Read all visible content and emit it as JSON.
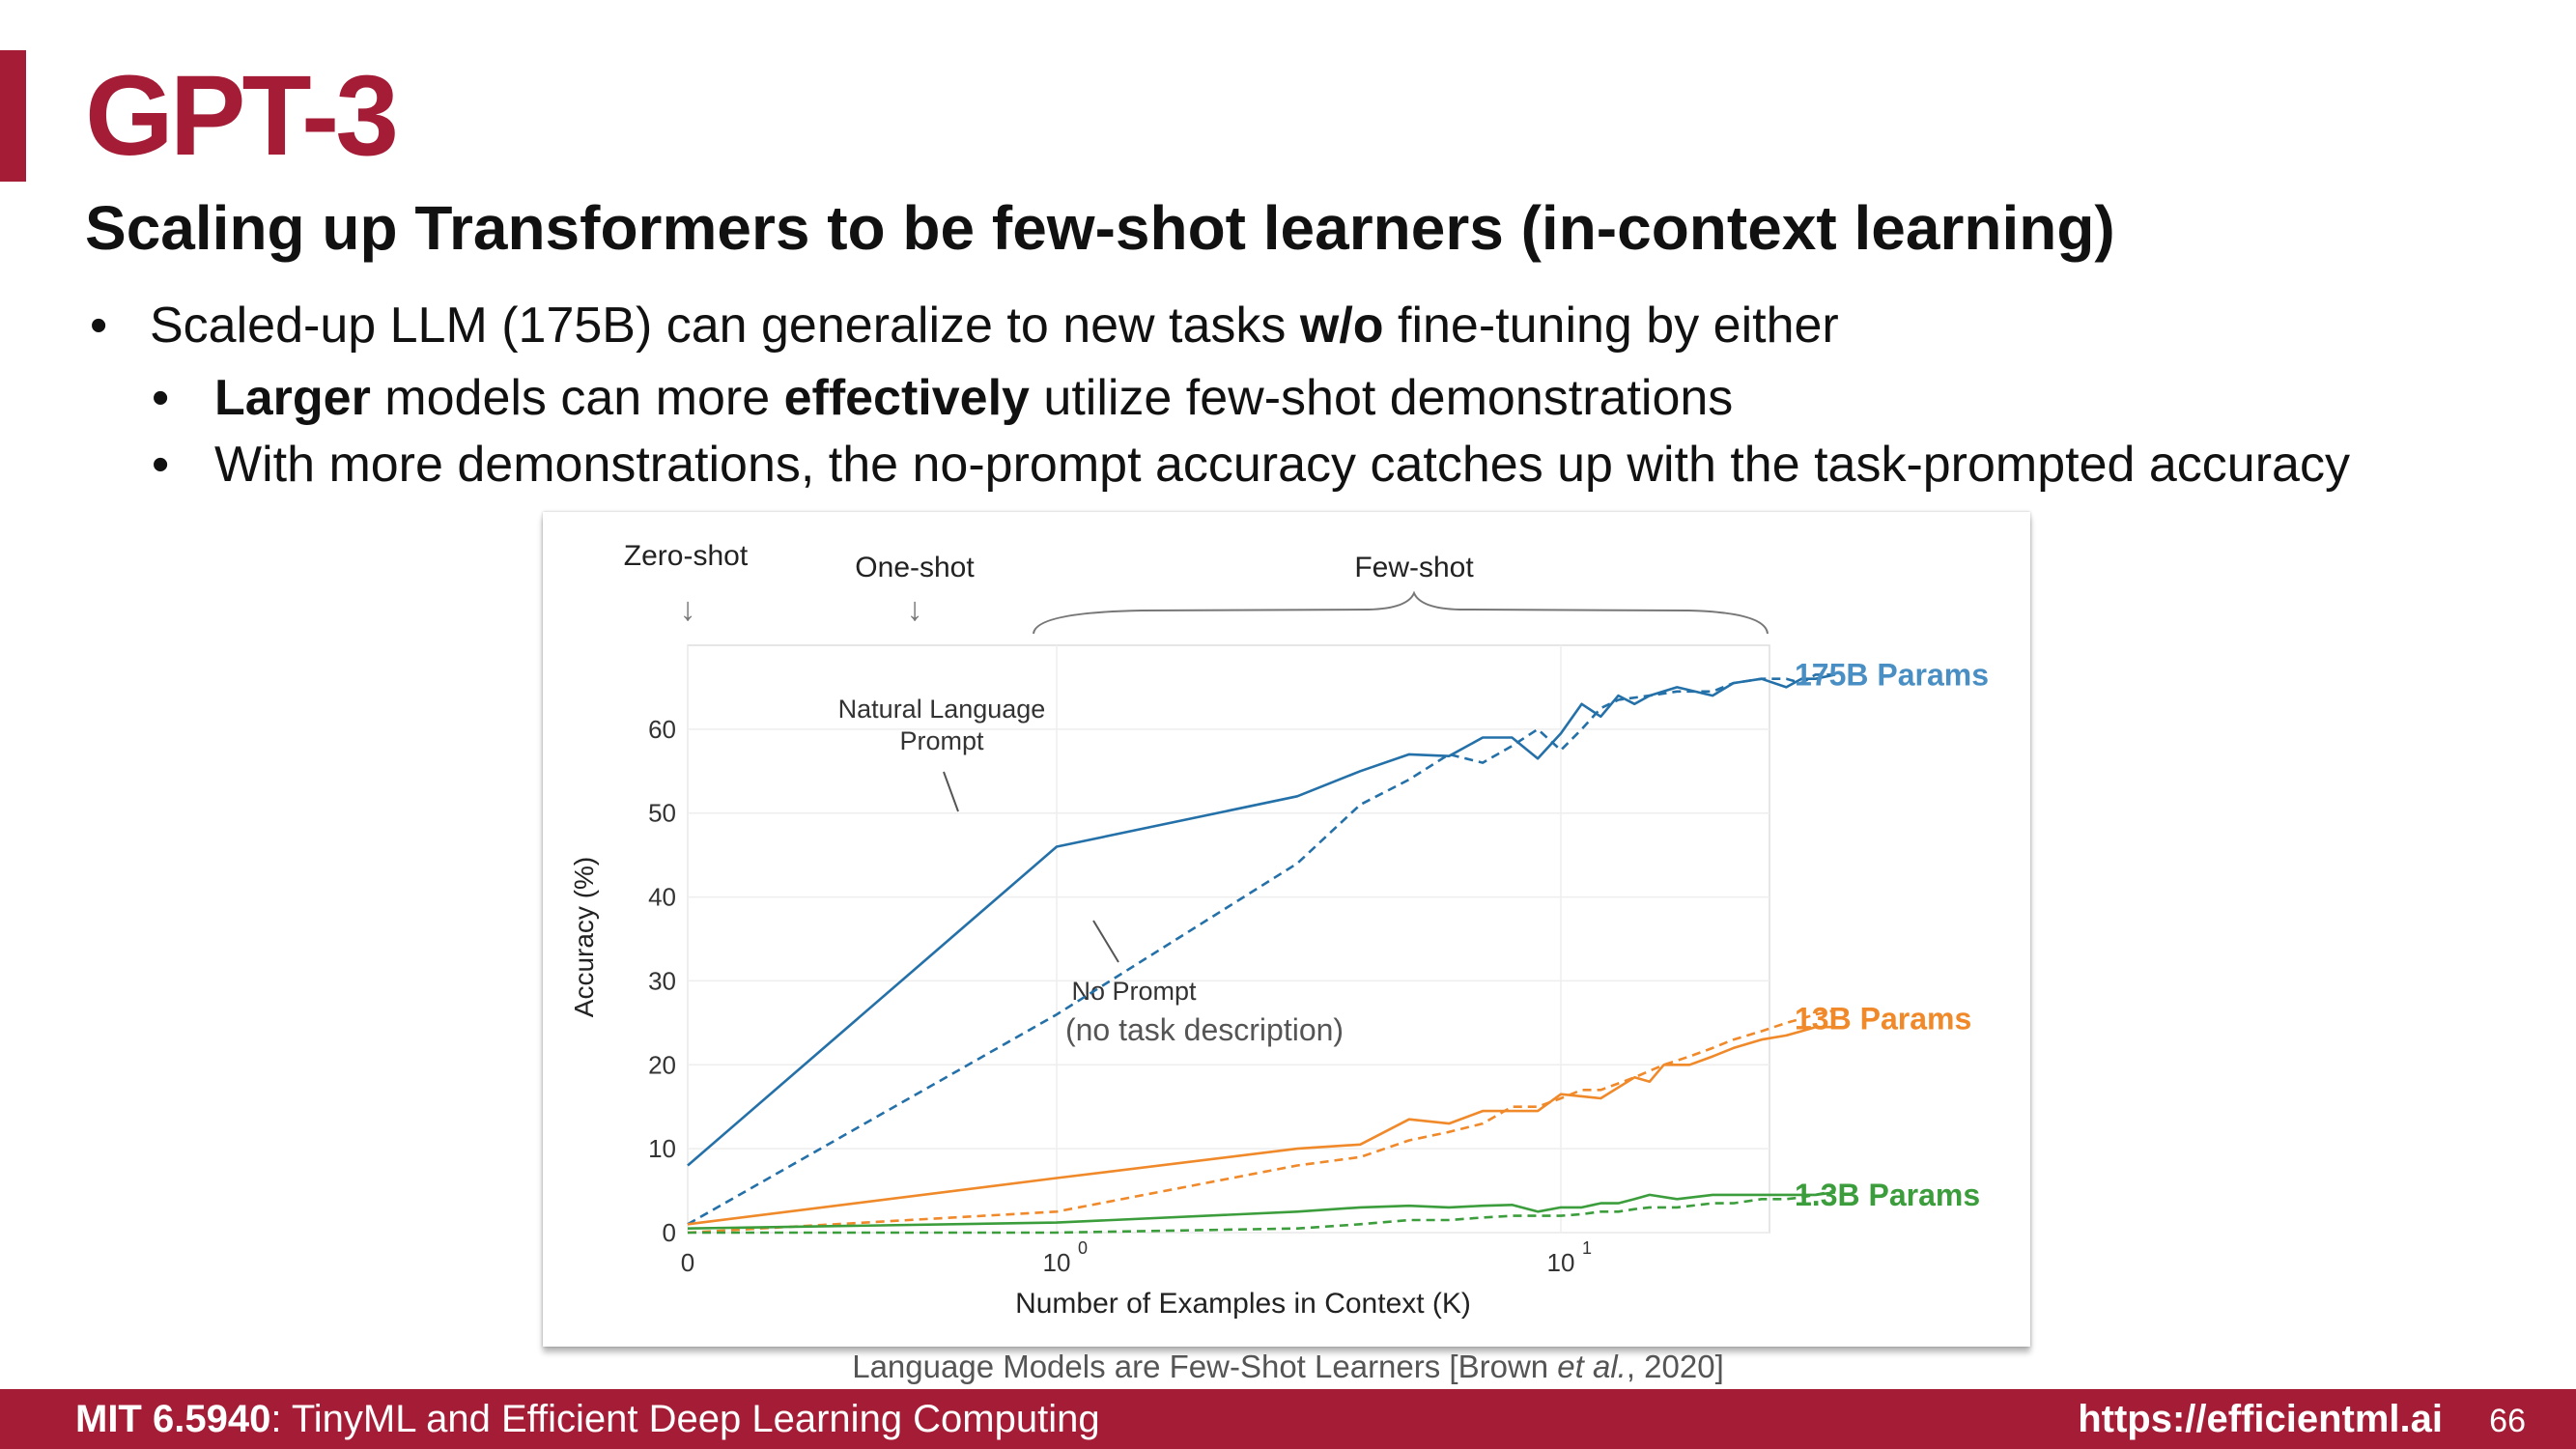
{
  "slide": {
    "title": "GPT-3",
    "subtitle": "Scaling up Transformers to be few-shot learners (in-context learning)",
    "bullets": {
      "b1": {
        "pre": "Scaled-up LLM (175B) can generalize to new tasks ",
        "bold": "w/o",
        "post": " fine-tuning by either"
      },
      "b2": {
        "bold1": "Larger",
        "mid": " models can more ",
        "bold2": "effectively",
        "post": " utilize few-shot demonstrations"
      },
      "b3": {
        "text": "With more demonstrations, the no-prompt accuracy catches up with the task-prompted accuracy"
      }
    },
    "bullet_glyph": "•",
    "caption": {
      "pre": "Language Models are Few-Shot Learners [Brown ",
      "italic": "et al.",
      "post": ", 2020]"
    },
    "footer": {
      "course": "MIT 6.5940",
      "course_title": ": TinyML and Efficient Deep Learning Computing",
      "url": "https://efficientml.ai",
      "page": "66"
    },
    "colors": {
      "accent": "#a51c36",
      "blue": "#2470a8",
      "orange": "#f0892a",
      "green": "#3c9d3c"
    }
  },
  "chart_data": {
    "type": "line",
    "xlabel": "Number of Examples in Context  (K)",
    "ylabel": "Accuracy (%)",
    "ylim": [
      0,
      70
    ],
    "yticks": [
      0,
      10,
      20,
      30,
      40,
      50,
      60
    ],
    "xticks": [
      {
        "value": 0,
        "label": "0",
        "sup": ""
      },
      {
        "value": 1,
        "label": "10",
        "sup": "0"
      },
      {
        "value": 10,
        "label": "10",
        "sup": "1"
      }
    ],
    "x_scale": "log (0 shown at left edge)",
    "grid": true,
    "top_labels": {
      "zero": "Zero-shot",
      "one": "One-shot",
      "few": "Few-shot",
      "arrow": "↓"
    },
    "annotations": {
      "nl_prompt": [
        "Natural Language",
        "Prompt"
      ],
      "no_prompt": "No Prompt",
      "no_prompt_sub": "(no task description)"
    },
    "series": [
      {
        "name": "175B Params",
        "color": "#2470a8",
        "style": "solid",
        "points": [
          [
            0,
            8
          ],
          [
            1,
            46
          ],
          [
            3,
            52
          ],
          [
            4,
            55
          ],
          [
            5,
            57
          ],
          [
            6,
            56.8
          ],
          [
            7,
            59
          ],
          [
            8,
            59
          ],
          [
            9,
            56.5
          ],
          [
            10,
            59.5
          ],
          [
            11,
            63
          ],
          [
            12,
            61.5
          ],
          [
            13,
            64
          ],
          [
            14,
            63
          ],
          [
            15,
            64
          ],
          [
            17,
            65
          ],
          [
            20,
            64
          ],
          [
            22,
            65.5
          ],
          [
            25,
            66
          ],
          [
            28,
            65
          ],
          [
            30,
            66
          ],
          [
            32,
            66
          ],
          [
            35,
            66.5
          ]
        ]
      },
      {
        "name": "175B Params",
        "color": "#2470a8",
        "style": "dashed",
        "points": [
          [
            0,
            1
          ],
          [
            1,
            26
          ],
          [
            3,
            44
          ],
          [
            4,
            51
          ],
          [
            5,
            54
          ],
          [
            6,
            57
          ],
          [
            7,
            56
          ],
          [
            8,
            58
          ],
          [
            9,
            60
          ],
          [
            10,
            57.5
          ],
          [
            11,
            60
          ],
          [
            12,
            62.5
          ],
          [
            13,
            63.5
          ],
          [
            15,
            64
          ],
          [
            17,
            64.5
          ],
          [
            20,
            64.5
          ],
          [
            22,
            65.5
          ],
          [
            25,
            66
          ],
          [
            28,
            66
          ],
          [
            30,
            65.5
          ],
          [
            32,
            66.5
          ],
          [
            35,
            66.5
          ]
        ]
      },
      {
        "name": "13B Params",
        "color": "#f0892a",
        "style": "solid",
        "points": [
          [
            0,
            1
          ],
          [
            1,
            6.5
          ],
          [
            3,
            10
          ],
          [
            4,
            10.5
          ],
          [
            5,
            13.5
          ],
          [
            6,
            13
          ],
          [
            7,
            14.5
          ],
          [
            8,
            14.5
          ],
          [
            9,
            14.5
          ],
          [
            10,
            16.5
          ],
          [
            12,
            16
          ],
          [
            14,
            18.5
          ],
          [
            15,
            18
          ],
          [
            16,
            20
          ],
          [
            18,
            20
          ],
          [
            20,
            21
          ],
          [
            22,
            22
          ],
          [
            25,
            23
          ],
          [
            28,
            23.5
          ],
          [
            30,
            24
          ],
          [
            32,
            24.5
          ],
          [
            35,
            24.5
          ]
        ]
      },
      {
        "name": "13B Params",
        "color": "#f0892a",
        "style": "dashed",
        "points": [
          [
            0,
            0
          ],
          [
            1,
            2.5
          ],
          [
            3,
            8
          ],
          [
            4,
            9
          ],
          [
            5,
            11
          ],
          [
            6,
            12
          ],
          [
            7,
            13
          ],
          [
            8,
            15
          ],
          [
            9,
            15
          ],
          [
            10,
            16
          ],
          [
            11,
            17
          ],
          [
            12,
            17
          ],
          [
            14,
            18.5
          ],
          [
            16,
            20
          ],
          [
            18,
            21
          ],
          [
            20,
            22
          ],
          [
            22,
            23
          ],
          [
            25,
            24
          ],
          [
            28,
            25
          ],
          [
            30,
            25.5
          ],
          [
            32,
            26
          ],
          [
            35,
            26.5
          ]
        ]
      },
      {
        "name": "1.3B Params",
        "color": "#3c9d3c",
        "style": "solid",
        "points": [
          [
            0,
            0.5
          ],
          [
            1,
            1.2
          ],
          [
            3,
            2.5
          ],
          [
            4,
            3
          ],
          [
            5,
            3.2
          ],
          [
            6,
            3
          ],
          [
            7,
            3.2
          ],
          [
            8,
            3.3
          ],
          [
            9,
            2.5
          ],
          [
            10,
            3
          ],
          [
            11,
            3
          ],
          [
            12,
            3.5
          ],
          [
            13,
            3.5
          ],
          [
            14,
            4
          ],
          [
            15,
            4.5
          ],
          [
            17,
            4
          ],
          [
            20,
            4.5
          ],
          [
            22,
            4.5
          ],
          [
            25,
            4.5
          ],
          [
            28,
            4.5
          ],
          [
            32,
            4.5
          ],
          [
            35,
            4.8
          ]
        ]
      },
      {
        "name": "1.3B Params",
        "color": "#3c9d3c",
        "style": "dashed",
        "points": [
          [
            0,
            0
          ],
          [
            1,
            0
          ],
          [
            3,
            0.5
          ],
          [
            4,
            1
          ],
          [
            5,
            1.5
          ],
          [
            6,
            1.5
          ],
          [
            7,
            1.8
          ],
          [
            8,
            2
          ],
          [
            9,
            2
          ],
          [
            10,
            2
          ],
          [
            11,
            2.2
          ],
          [
            12,
            2.5
          ],
          [
            13,
            2.5
          ],
          [
            14,
            2.8
          ],
          [
            15,
            3
          ],
          [
            17,
            3
          ],
          [
            20,
            3.5
          ],
          [
            22,
            3.5
          ],
          [
            25,
            4
          ],
          [
            28,
            4
          ],
          [
            30,
            4.2
          ],
          [
            32,
            4.5
          ],
          [
            35,
            5
          ]
        ]
      }
    ],
    "end_labels": [
      {
        "text": "175B Params",
        "color": "#4a8fc4",
        "y": 66.5
      },
      {
        "text": "13B Params",
        "color": "#f0892a",
        "y": 25.5
      },
      {
        "text": "1.3B Params",
        "color": "#3c9d3c",
        "y": 4.5
      }
    ]
  }
}
